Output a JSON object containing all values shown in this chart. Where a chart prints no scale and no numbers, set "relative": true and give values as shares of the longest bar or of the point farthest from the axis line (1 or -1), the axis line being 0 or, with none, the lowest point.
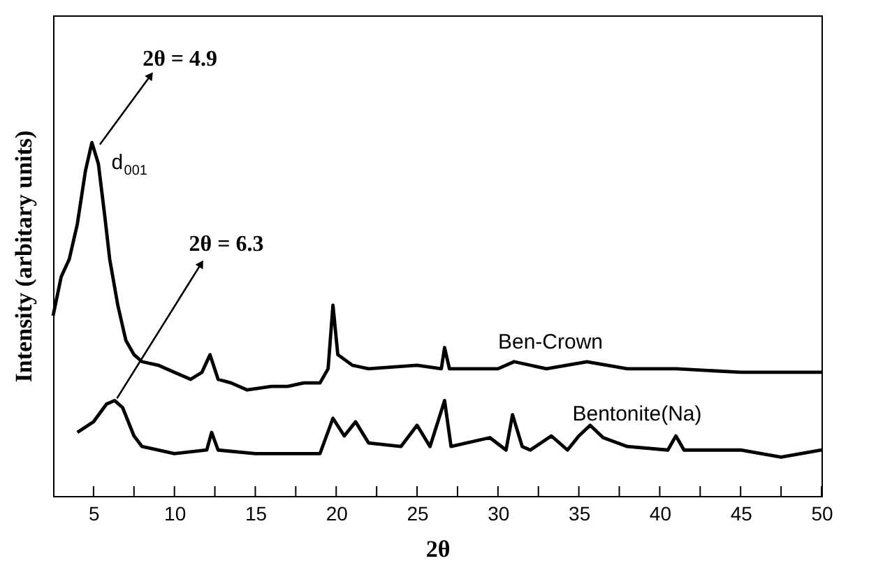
{
  "chart_data": {
    "type": "line",
    "relative": true,
    "xlabel": "2θ",
    "ylabel": "Intensity (arbitary units)",
    "xlim": [
      2.5,
      50
    ],
    "xticks": [
      5,
      {
        "value": 7.5,
        "label": null
      },
      10,
      {
        "value": 12.5,
        "label": null
      },
      15,
      {
        "value": 17.5,
        "label": null
      },
      20,
      {
        "value": 22.5,
        "label": null
      },
      25,
      {
        "value": 27.5,
        "label": null
      },
      30,
      {
        "value": 32.5,
        "label": null
      },
      35,
      {
        "value": 37.5,
        "label": null
      },
      40,
      {
        "value": 42.5,
        "label": null
      },
      45,
      {
        "value": 47.5,
        "label": null
      },
      50
    ],
    "grid": false,
    "legend": false,
    "marker": "none",
    "line_style": "solid",
    "annotations": [
      "2θ = 4.9",
      "d$_{001}$",
      "2θ = 6.3"
    ],
    "series": [
      {
        "name": "Ben-Crown",
        "color": "#000000",
        "x": [
          2.5,
          3,
          3.5,
          4,
          4.5,
          4.9,
          5.3,
          5.7,
          6,
          6.5,
          7,
          7.5,
          8,
          9,
          10,
          11,
          11.7,
          12.2,
          12.7,
          13.5,
          14.5,
          16,
          17,
          18,
          19,
          19.5,
          19.8,
          20.1,
          21,
          22,
          25,
          26.5,
          26.7,
          27,
          30,
          31,
          33,
          35.5,
          38,
          41,
          45,
          50
        ],
        "values": [
          0.51,
          0.62,
          0.67,
          0.77,
          0.92,
          1.0,
          0.94,
          0.79,
          0.67,
          0.54,
          0.44,
          0.4,
          0.38,
          0.37,
          0.35,
          0.33,
          0.35,
          0.4,
          0.33,
          0.32,
          0.3,
          0.31,
          0.31,
          0.32,
          0.32,
          0.36,
          0.54,
          0.4,
          0.37,
          0.36,
          0.37,
          0.36,
          0.42,
          0.36,
          0.36,
          0.38,
          0.36,
          0.38,
          0.36,
          0.36,
          0.35,
          0.35
        ]
      },
      {
        "name": "Bentonite(Na)",
        "color": "#000000",
        "x": [
          4,
          5,
          5.8,
          6.3,
          6.8,
          7.5,
          8,
          10,
          12,
          12.3,
          12.7,
          15,
          19,
          19.8,
          20.5,
          21.2,
          22,
          24,
          25,
          25.8,
          26.7,
          27.1,
          29.5,
          30.5,
          30.9,
          31.5,
          32,
          33.3,
          34.3,
          35,
          35.7,
          36.5,
          38,
          40.5,
          41,
          41.5,
          45,
          47.5,
          50
        ],
        "values": [
          0.18,
          0.21,
          0.26,
          0.27,
          0.25,
          0.17,
          0.14,
          0.12,
          0.13,
          0.18,
          0.13,
          0.12,
          0.12,
          0.22,
          0.17,
          0.21,
          0.15,
          0.14,
          0.2,
          0.14,
          0.27,
          0.14,
          0.165,
          0.13,
          0.23,
          0.14,
          0.13,
          0.17,
          0.13,
          0.17,
          0.2,
          0.165,
          0.14,
          0.13,
          0.17,
          0.13,
          0.13,
          0.11,
          0.13
        ]
      }
    ]
  }
}
